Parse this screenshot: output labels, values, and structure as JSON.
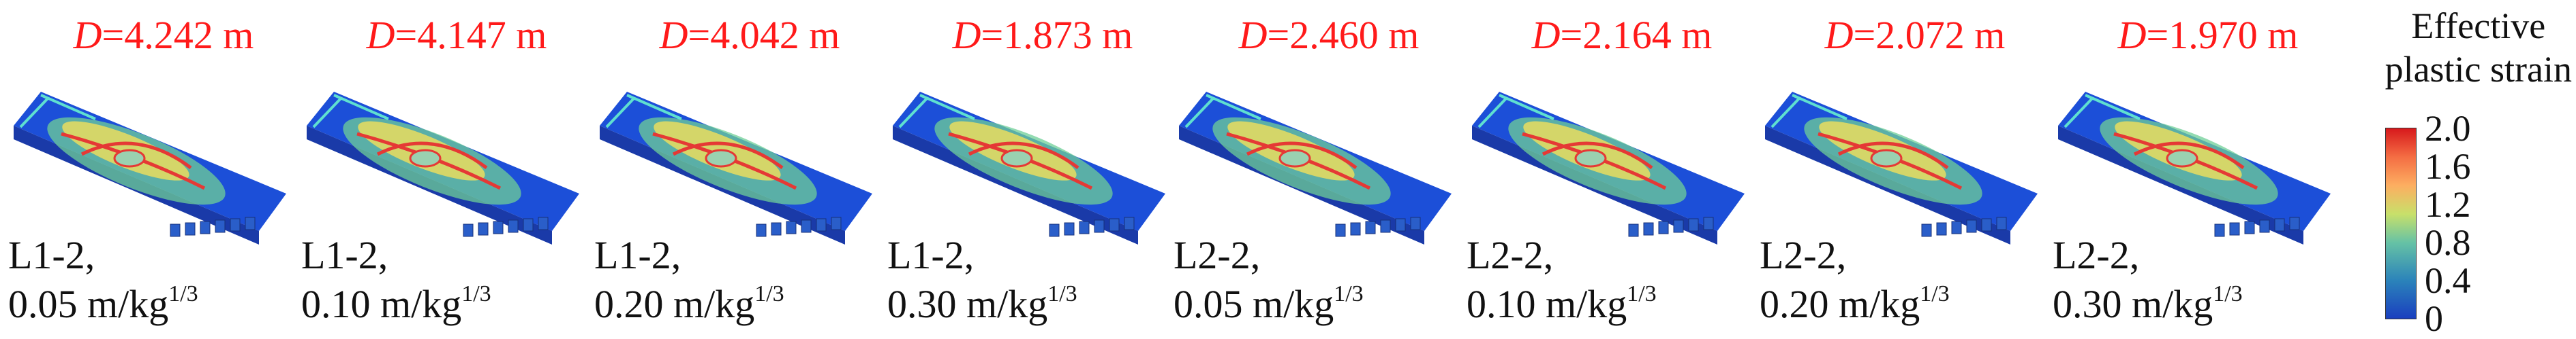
{
  "panels": [
    {
      "d_label": "D",
      "d_value": "=4.242 m",
      "case": "L1-2,",
      "rate": "0.05 m/kg",
      "exp": "1/3"
    },
    {
      "d_label": "D",
      "d_value": "=4.147 m",
      "case": "L1-2,",
      "rate": "0.10 m/kg",
      "exp": "1/3"
    },
    {
      "d_label": "D",
      "d_value": "=4.042 m",
      "case": "L1-2,",
      "rate": "0.20 m/kg",
      "exp": "1/3"
    },
    {
      "d_label": "D",
      "d_value": "=1.873 m",
      "case": "L1-2,",
      "rate": "0.30 m/kg",
      "exp": "1/3"
    },
    {
      "d_label": "D",
      "d_value": "=2.460 m",
      "case": "L2-2,",
      "rate": "0.05 m/kg",
      "exp": "1/3"
    },
    {
      "d_label": "D",
      "d_value": "=2.164 m",
      "case": "L2-2,",
      "rate": "0.10 m/kg",
      "exp": "1/3"
    },
    {
      "d_label": "D",
      "d_value": "=2.072 m",
      "case": "L2-2,",
      "rate": "0.20 m/kg",
      "exp": "1/3"
    },
    {
      "d_label": "D",
      "d_value": "=1.970 m",
      "case": "L2-2,",
      "rate": "0.30 m/kg",
      "exp": "1/3"
    }
  ],
  "legend": {
    "title_line1": "Effective",
    "title_line2": "plastic strain",
    "ticks": [
      "2.0",
      "1.6",
      "1.2",
      "0.8",
      "0.4",
      "0"
    ],
    "colors": [
      "#d7191c",
      "#f46d43",
      "#fdae61",
      "#a6d96a",
      "#66c2a5",
      "#2b83ba",
      "#1a3fbf"
    ]
  }
}
